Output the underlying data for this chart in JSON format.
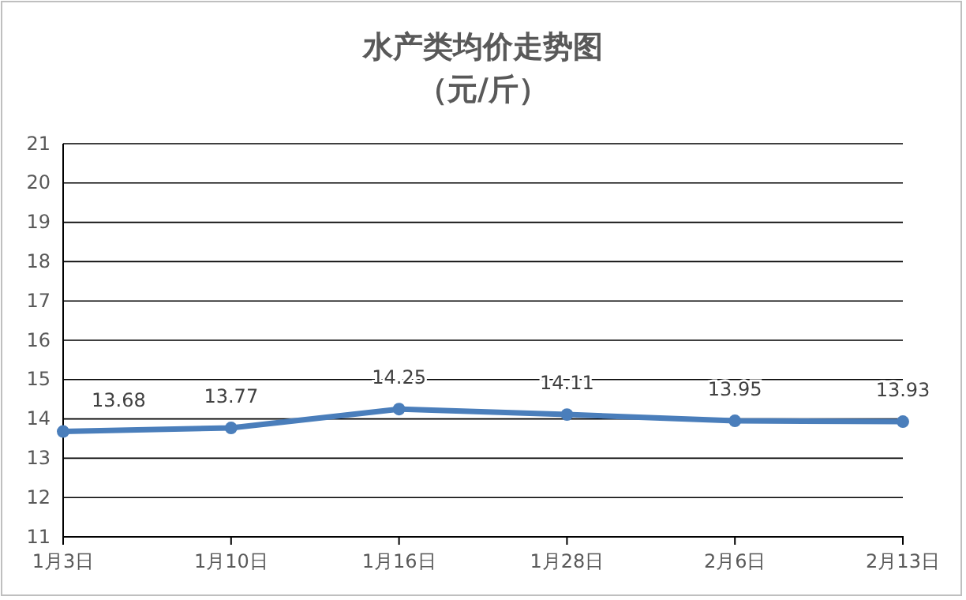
{
  "chart_data": {
    "type": "line",
    "title": "水产类均价走势图",
    "subtitle": "（元/斤）",
    "categories": [
      "1月3日",
      "1月10日",
      "1月16日",
      "1月28日",
      "2月6日",
      "2月13日"
    ],
    "series": [
      {
        "color": "#4a7ebb",
        "values": [
          13.68,
          13.77,
          14.25,
          14.11,
          13.95,
          13.93
        ]
      }
    ],
    "ylim": [
      11,
      21
    ],
    "yticks": [
      11,
      12,
      13,
      14,
      15,
      16,
      17,
      18,
      19,
      20,
      21
    ],
    "grid": "y",
    "marker": "circle",
    "line_style": "solid",
    "data_labels": true
  }
}
